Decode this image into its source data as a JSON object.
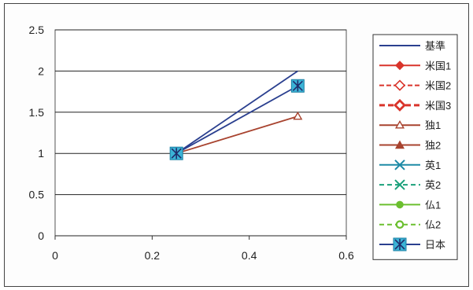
{
  "chart_data": {
    "type": "line",
    "title": "",
    "xlabel": "",
    "ylabel": "",
    "xlim": [
      0,
      0.6
    ],
    "ylim": [
      0,
      2.5
    ],
    "x_ticks": [
      "0",
      "0.2",
      "0.4",
      "0.6"
    ],
    "y_ticks": [
      "0",
      "0.5",
      "1",
      "1.5",
      "2",
      "2.5"
    ],
    "grid": "horizontal",
    "legend_position": "right",
    "series": [
      {
        "name": "基準",
        "x": [
          0.25,
          0.5
        ],
        "y": [
          1,
          2.0
        ],
        "color": "#2a3f8f",
        "dash": "",
        "marker": "none"
      },
      {
        "name": "米国1",
        "x": [],
        "y": [],
        "color": "#d9342b",
        "dash": "",
        "marker": "diamond"
      },
      {
        "name": "米国2",
        "x": [],
        "y": [],
        "color": "#d9342b",
        "dash": "6,3",
        "marker": "diamond-open"
      },
      {
        "name": "米国3",
        "x": [],
        "y": [],
        "color": "#d9342b",
        "dash": "7,4",
        "marker": "diamond-open-thick"
      },
      {
        "name": "独1",
        "x": [
          0.25,
          0.5
        ],
        "y": [
          1,
          1.45
        ],
        "color": "#a8432f",
        "dash": "",
        "marker": "triangle-open"
      },
      {
        "name": "独2",
        "x": [],
        "y": [],
        "color": "#a8432f",
        "dash": "",
        "marker": "triangle"
      },
      {
        "name": "英1",
        "x": [],
        "y": [],
        "color": "#1d8aa6",
        "dash": "",
        "marker": "x"
      },
      {
        "name": "英2",
        "x": [],
        "y": [],
        "color": "#1aa07a",
        "dash": "6,4",
        "marker": "x"
      },
      {
        "name": "仏1",
        "x": [],
        "y": [],
        "color": "#6bbf2f",
        "dash": "",
        "marker": "circle"
      },
      {
        "name": "仏2",
        "x": [],
        "y": [],
        "color": "#6bbf2f",
        "dash": "6,4",
        "marker": "circle-open"
      },
      {
        "name": "日本",
        "x": [
          0.25,
          0.5
        ],
        "y": [
          1,
          1.82
        ],
        "color": "#2a3f8f",
        "dash": "",
        "marker": "square-star"
      }
    ]
  }
}
